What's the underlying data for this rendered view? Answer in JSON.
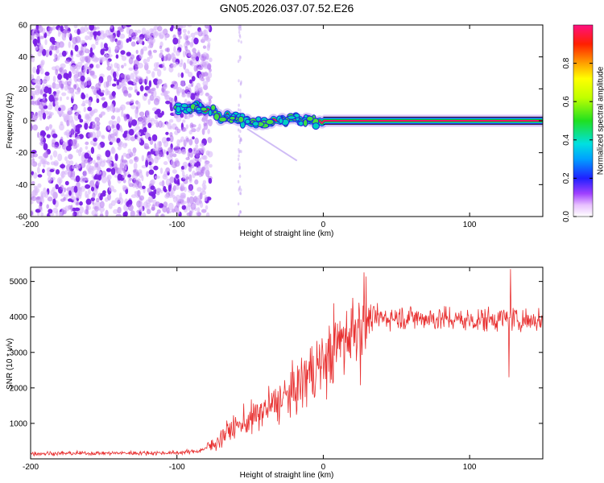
{
  "title": "GN05.2026.037.07.52.E26",
  "colors": {
    "snr_line": "#e83030",
    "stripe_center": "#e8186a",
    "stripe_ring": "#00c030",
    "stripe_outer": "#2020e0",
    "speckle": "#7a1fe6"
  },
  "chart_data": [
    {
      "type": "heatmap",
      "id": "spectrogram",
      "xlabel": "Height of straight line (km)",
      "ylabel": "Frequency (Hz)",
      "xlim": [
        -200,
        150
      ],
      "ylim": [
        -60,
        60
      ],
      "xticks": [
        -200,
        -100,
        0,
        100
      ],
      "yticks": [
        -60,
        -40,
        -20,
        0,
        20,
        40,
        60
      ],
      "noise_region_km": [
        -200,
        -77
      ],
      "signal_track": [
        {
          "x": -100,
          "y": 8
        },
        {
          "x": -80,
          "y": 8
        },
        {
          "x": -70,
          "y": 2
        },
        {
          "x": -60,
          "y": 1
        },
        {
          "x": -45,
          "y": -2
        },
        {
          "x": -30,
          "y": 0
        },
        {
          "x": -15,
          "y": 1
        },
        {
          "x": -5,
          "y": 0
        },
        {
          "x": 0,
          "y": 0
        },
        {
          "x": 150,
          "y": 0
        }
      ],
      "colorbar": {
        "label": "Normalized spectral amplitude",
        "range": [
          0,
          1
        ],
        "ticks": [
          "0.0",
          "0.2",
          "0.4",
          "0.6",
          "0.8"
        ]
      }
    },
    {
      "type": "line",
      "id": "snr",
      "xlabel": "Height of straight line (km)",
      "ylabel": "SNR (10 * v/v)",
      "xlim": [
        -200,
        150
      ],
      "ylim": [
        0,
        5400
      ],
      "xticks": [
        -200,
        -100,
        0,
        100
      ],
      "yticks": [
        1000,
        2000,
        3000,
        4000,
        5000
      ],
      "series": [
        {
          "name": "SNR",
          "trend": [
            {
              "x": -200,
              "y": 150
            },
            {
              "x": -100,
              "y": 170
            },
            {
              "x": -85,
              "y": 220
            },
            {
              "x": -75,
              "y": 400
            },
            {
              "x": -65,
              "y": 800
            },
            {
              "x": -50,
              "y": 1100
            },
            {
              "x": -35,
              "y": 1500
            },
            {
              "x": -20,
              "y": 1900
            },
            {
              "x": -10,
              "y": 2400
            },
            {
              "x": 0,
              "y": 2700
            },
            {
              "x": 10,
              "y": 3200
            },
            {
              "x": 20,
              "y": 3700
            },
            {
              "x": 30,
              "y": 3950
            },
            {
              "x": 50,
              "y": 4000
            },
            {
              "x": 80,
              "y": 3950
            },
            {
              "x": 100,
              "y": 3900
            },
            {
              "x": 120,
              "y": 3950
            },
            {
              "x": 150,
              "y": 3900
            }
          ],
          "peak": {
            "x": 128,
            "y": 5350
          },
          "dip": {
            "x": 127,
            "y": 2300
          }
        }
      ]
    }
  ]
}
